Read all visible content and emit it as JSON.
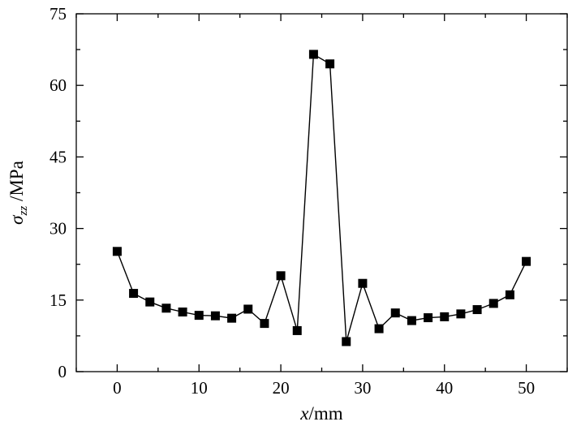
{
  "chart_data": {
    "type": "line",
    "xlabel": {
      "var": "x",
      "unit": "/mm"
    },
    "ylabel": {
      "var": "σ",
      "sub": "zz",
      "unit": " /MPa"
    },
    "xlim": [
      -5,
      55
    ],
    "ylim": [
      0,
      75
    ],
    "xticks": [
      0,
      10,
      20,
      30,
      40,
      50
    ],
    "yticks": [
      0,
      15,
      30,
      45,
      60,
      75
    ],
    "grid": false,
    "series": [
      {
        "marker": "square",
        "color": "#000000",
        "x": [
          0,
          2,
          4,
          6,
          8,
          10,
          12,
          14,
          16,
          18,
          20,
          22,
          24,
          26,
          28,
          30,
          32,
          34,
          36,
          38,
          40,
          42,
          44,
          46,
          48,
          50
        ],
        "y": [
          25.2,
          16.4,
          14.6,
          13.3,
          12.5,
          11.8,
          11.7,
          11.2,
          13.1,
          10.1,
          20.1,
          8.6,
          66.5,
          64.5,
          6.3,
          18.5,
          9.0,
          12.3,
          10.7,
          11.3,
          11.5,
          12.1,
          13.0,
          14.3,
          16.1,
          23.1
        ]
      }
    ]
  }
}
